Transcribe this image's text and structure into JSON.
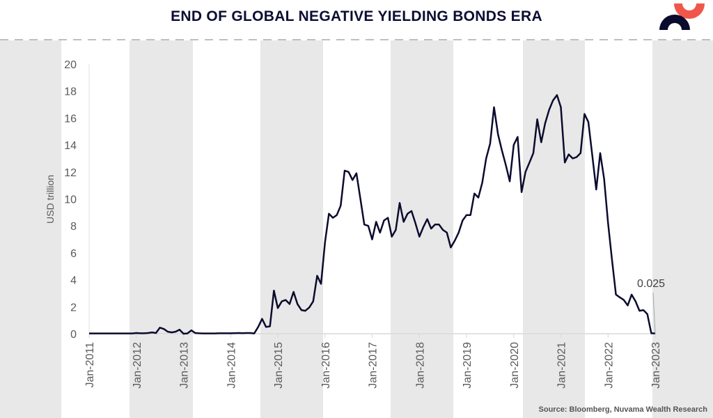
{
  "header": {
    "title": "END OF GLOBAL NEGATIVE YIELDING BONDS ERA"
  },
  "footer": {
    "source": "Source: Bloomberg, Nuvama Wealth Research"
  },
  "colors": {
    "line": "#0b0b2e",
    "band": "#e8e8e8",
    "logo_top": "#f0574a",
    "logo_bottom": "#0b0b2e"
  },
  "chart_data": {
    "type": "line",
    "title": "END OF GLOBAL NEGATIVE YIELDING BONDS ERA",
    "ylabel": "USD trillion",
    "xlabel": "",
    "ylim": [
      0,
      20
    ],
    "yticks": [
      "0",
      "2",
      "4",
      "6",
      "8",
      "10",
      "12",
      "14",
      "16",
      "18",
      "20"
    ],
    "xticks": [
      "Jan-2011",
      "Jan-2012",
      "Jan-2013",
      "Jan-2014",
      "Jan-2015",
      "Jan-2016",
      "Jan-2017",
      "Jan-2018",
      "Jan-2019",
      "Jan-2020",
      "Jan-2021",
      "Jan-2022",
      "Jan-2023"
    ],
    "grid": false,
    "frequency": "monthly",
    "x": [
      "2011-01",
      "2011-02",
      "2011-03",
      "2011-04",
      "2011-05",
      "2011-06",
      "2011-07",
      "2011-08",
      "2011-09",
      "2011-10",
      "2011-11",
      "2011-12",
      "2012-01",
      "2012-02",
      "2012-03",
      "2012-04",
      "2012-05",
      "2012-06",
      "2012-07",
      "2012-08",
      "2012-09",
      "2012-10",
      "2012-11",
      "2012-12",
      "2013-01",
      "2013-02",
      "2013-03",
      "2013-04",
      "2013-05",
      "2013-06",
      "2013-07",
      "2013-08",
      "2013-09",
      "2013-10",
      "2013-11",
      "2013-12",
      "2014-01",
      "2014-02",
      "2014-03",
      "2014-04",
      "2014-05",
      "2014-06",
      "2014-07",
      "2014-08",
      "2014-09",
      "2014-10",
      "2014-11",
      "2014-12",
      "2015-01",
      "2015-02",
      "2015-03",
      "2015-04",
      "2015-05",
      "2015-06",
      "2015-07",
      "2015-08",
      "2015-09",
      "2015-10",
      "2015-11",
      "2015-12",
      "2016-01",
      "2016-02",
      "2016-03",
      "2016-04",
      "2016-05",
      "2016-06",
      "2016-07",
      "2016-08",
      "2016-09",
      "2016-10",
      "2016-11",
      "2016-12",
      "2017-01",
      "2017-02",
      "2017-03",
      "2017-04",
      "2017-05",
      "2017-06",
      "2017-07",
      "2017-08",
      "2017-09",
      "2017-10",
      "2017-11",
      "2017-12",
      "2018-01",
      "2018-02",
      "2018-03",
      "2018-04",
      "2018-05",
      "2018-06",
      "2018-07",
      "2018-08",
      "2018-09",
      "2018-10",
      "2018-11",
      "2018-12",
      "2019-01",
      "2019-02",
      "2019-03",
      "2019-04",
      "2019-05",
      "2019-06",
      "2019-07",
      "2019-08",
      "2019-09",
      "2019-10",
      "2019-11",
      "2019-12",
      "2020-01",
      "2020-02",
      "2020-03",
      "2020-04",
      "2020-05",
      "2020-06",
      "2020-07",
      "2020-08",
      "2020-09",
      "2020-10",
      "2020-11",
      "2020-12",
      "2021-01",
      "2021-02",
      "2021-03",
      "2021-04",
      "2021-05",
      "2021-06",
      "2021-07",
      "2021-08",
      "2021-09",
      "2021-10",
      "2021-11",
      "2021-12",
      "2022-01",
      "2022-02",
      "2022-03",
      "2022-04",
      "2022-05",
      "2022-06",
      "2022-07",
      "2022-08",
      "2022-09",
      "2022-10",
      "2022-11",
      "2022-12",
      "2023-01"
    ],
    "series": [
      {
        "values": [
          0.02,
          0.02,
          0.02,
          0.02,
          0.02,
          0.02,
          0.02,
          0.02,
          0.02,
          0.02,
          0.02,
          0.02,
          0.05,
          0.03,
          0.03,
          0.05,
          0.1,
          0.05,
          0.45,
          0.35,
          0.15,
          0.1,
          0.15,
          0.3,
          0.0,
          0.02,
          0.25,
          0.05,
          0.03,
          0.02,
          0.02,
          0.02,
          0.02,
          0.03,
          0.03,
          0.03,
          0.03,
          0.04,
          0.05,
          0.04,
          0.05,
          0.05,
          0.02,
          0.5,
          1.1,
          0.5,
          0.55,
          3.2,
          1.9,
          2.4,
          2.5,
          2.2,
          3.1,
          2.2,
          1.75,
          1.7,
          1.95,
          2.4,
          4.3,
          3.7,
          6.8,
          8.9,
          8.6,
          8.8,
          9.5,
          12.1,
          12.0,
          11.4,
          11.9,
          10.0,
          8.1,
          8.0,
          7.0,
          8.3,
          7.5,
          8.4,
          8.6,
          7.2,
          7.7,
          9.7,
          8.3,
          8.9,
          9.1,
          8.2,
          7.2,
          7.9,
          8.5,
          7.8,
          8.1,
          8.1,
          7.7,
          7.5,
          6.4,
          6.9,
          7.5,
          8.4,
          8.8,
          8.8,
          10.4,
          10.1,
          11.2,
          13.0,
          14.1,
          16.8,
          14.8,
          13.6,
          12.5,
          11.3,
          14.0,
          14.6,
          10.5,
          12.0,
          12.7,
          13.4,
          15.9,
          14.2,
          15.6,
          16.6,
          17.3,
          17.7,
          16.8,
          12.7,
          13.3,
          13.0,
          13.1,
          13.4,
          16.3,
          15.7,
          13.2,
          10.7,
          13.4,
          11.5,
          8.2,
          5.5,
          2.9,
          2.7,
          2.5,
          2.1,
          2.9,
          2.4,
          1.7,
          1.75,
          1.45,
          0.03,
          0.025
        ]
      }
    ],
    "annotations": [
      {
        "x": "2023-01",
        "y": 0.025,
        "text": "0.025"
      }
    ]
  }
}
